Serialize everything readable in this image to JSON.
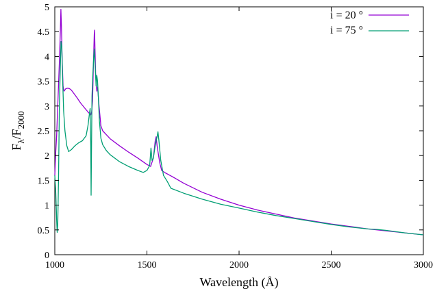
{
  "chart_data": {
    "type": "line",
    "xlabel": "Wavelength (Å)",
    "ylabel_main": "F",
    "ylabel_sub1": "λ",
    "ylabel_mid": "/F",
    "ylabel_sub2": "2000",
    "xlim": [
      1000,
      3000
    ],
    "ylim": [
      0,
      5
    ],
    "x_ticks": [
      "1000",
      "1500",
      "2000",
      "2500",
      "3000"
    ],
    "y_ticks": [
      "0",
      "0.5",
      "1",
      "1.5",
      "2",
      "2.5",
      "3",
      "3.5",
      "4",
      "4.5",
      "5"
    ],
    "legend_position": "top-right",
    "grid": false,
    "series": [
      {
        "name": "i = 20 °",
        "color": "#9400d3",
        "points": [
          [
            1000,
            1.6
          ],
          [
            1005,
            2.05
          ],
          [
            1010,
            2.4
          ],
          [
            1015,
            2.9
          ],
          [
            1020,
            3.4
          ],
          [
            1025,
            3.9
          ],
          [
            1030,
            4.5
          ],
          [
            1033,
            4.95
          ],
          [
            1036,
            4.6
          ],
          [
            1040,
            3.9
          ],
          [
            1045,
            3.4
          ],
          [
            1050,
            3.3
          ],
          [
            1060,
            3.35
          ],
          [
            1070,
            3.36
          ],
          [
            1080,
            3.35
          ],
          [
            1090,
            3.32
          ],
          [
            1100,
            3.27
          ],
          [
            1120,
            3.17
          ],
          [
            1140,
            3.06
          ],
          [
            1160,
            2.97
          ],
          [
            1180,
            2.88
          ],
          [
            1195,
            2.82
          ],
          [
            1200,
            2.88
          ],
          [
            1205,
            3.1
          ],
          [
            1210,
            3.9
          ],
          [
            1214,
            4.45
          ],
          [
            1216,
            4.53
          ],
          [
            1218,
            4.2
          ],
          [
            1222,
            3.6
          ],
          [
            1228,
            3.3
          ],
          [
            1232,
            3.38
          ],
          [
            1236,
            3.2
          ],
          [
            1240,
            3.0
          ],
          [
            1250,
            2.6
          ],
          [
            1260,
            2.5
          ],
          [
            1280,
            2.42
          ],
          [
            1300,
            2.34
          ],
          [
            1350,
            2.2
          ],
          [
            1400,
            2.07
          ],
          [
            1450,
            1.95
          ],
          [
            1500,
            1.82
          ],
          [
            1520,
            1.78
          ],
          [
            1535,
            1.95
          ],
          [
            1545,
            2.3
          ],
          [
            1550,
            2.38
          ],
          [
            1555,
            2.2
          ],
          [
            1560,
            2.08
          ],
          [
            1570,
            1.85
          ],
          [
            1580,
            1.7
          ],
          [
            1600,
            1.65
          ],
          [
            1650,
            1.55
          ],
          [
            1700,
            1.44
          ],
          [
            1800,
            1.26
          ],
          [
            1900,
            1.12
          ],
          [
            2000,
            1.0
          ],
          [
            2100,
            0.9
          ],
          [
            2200,
            0.82
          ],
          [
            2300,
            0.74
          ],
          [
            2400,
            0.68
          ],
          [
            2500,
            0.62
          ],
          [
            2600,
            0.57
          ],
          [
            2700,
            0.52
          ],
          [
            2800,
            0.48
          ],
          [
            2900,
            0.44
          ],
          [
            3000,
            0.4
          ]
        ]
      },
      {
        "name": "i = 75 °",
        "color": "#009e73",
        "points": [
          [
            1000,
            1.6
          ],
          [
            1005,
            1.3
          ],
          [
            1010,
            0.7
          ],
          [
            1013,
            0.45
          ],
          [
            1016,
            0.6
          ],
          [
            1020,
            1.5
          ],
          [
            1025,
            3.0
          ],
          [
            1030,
            3.8
          ],
          [
            1034,
            4.3
          ],
          [
            1038,
            4.2
          ],
          [
            1042,
            3.6
          ],
          [
            1048,
            2.9
          ],
          [
            1055,
            2.5
          ],
          [
            1065,
            2.2
          ],
          [
            1075,
            2.08
          ],
          [
            1090,
            2.12
          ],
          [
            1110,
            2.2
          ],
          [
            1130,
            2.26
          ],
          [
            1150,
            2.3
          ],
          [
            1170,
            2.4
          ],
          [
            1180,
            2.6
          ],
          [
            1188,
            2.85
          ],
          [
            1192,
            2.95
          ],
          [
            1195,
            2.2
          ],
          [
            1197,
            1.2
          ],
          [
            1199,
            2.0
          ],
          [
            1202,
            3.2
          ],
          [
            1206,
            3.6
          ],
          [
            1210,
            3.9
          ],
          [
            1214,
            4.15
          ],
          [
            1218,
            3.9
          ],
          [
            1224,
            3.4
          ],
          [
            1228,
            3.62
          ],
          [
            1232,
            3.5
          ],
          [
            1236,
            3.2
          ],
          [
            1242,
            2.7
          ],
          [
            1250,
            2.35
          ],
          [
            1260,
            2.22
          ],
          [
            1280,
            2.1
          ],
          [
            1300,
            2.02
          ],
          [
            1350,
            1.88
          ],
          [
            1400,
            1.78
          ],
          [
            1450,
            1.7
          ],
          [
            1480,
            1.66
          ],
          [
            1500,
            1.7
          ],
          [
            1515,
            1.8
          ],
          [
            1522,
            2.15
          ],
          [
            1528,
            1.9
          ],
          [
            1535,
            1.95
          ],
          [
            1545,
            2.2
          ],
          [
            1555,
            2.38
          ],
          [
            1560,
            2.48
          ],
          [
            1565,
            2.3
          ],
          [
            1575,
            1.9
          ],
          [
            1590,
            1.6
          ],
          [
            1610,
            1.48
          ],
          [
            1630,
            1.34
          ],
          [
            1700,
            1.24
          ],
          [
            1800,
            1.12
          ],
          [
            1900,
            1.02
          ],
          [
            2000,
            0.94
          ],
          [
            2100,
            0.86
          ],
          [
            2200,
            0.79
          ],
          [
            2300,
            0.73
          ],
          [
            2400,
            0.67
          ],
          [
            2500,
            0.61
          ],
          [
            2600,
            0.56
          ],
          [
            2700,
            0.52
          ],
          [
            2750,
            0.51
          ],
          [
            2800,
            0.49
          ],
          [
            2900,
            0.44
          ],
          [
            3000,
            0.4
          ]
        ]
      }
    ]
  }
}
